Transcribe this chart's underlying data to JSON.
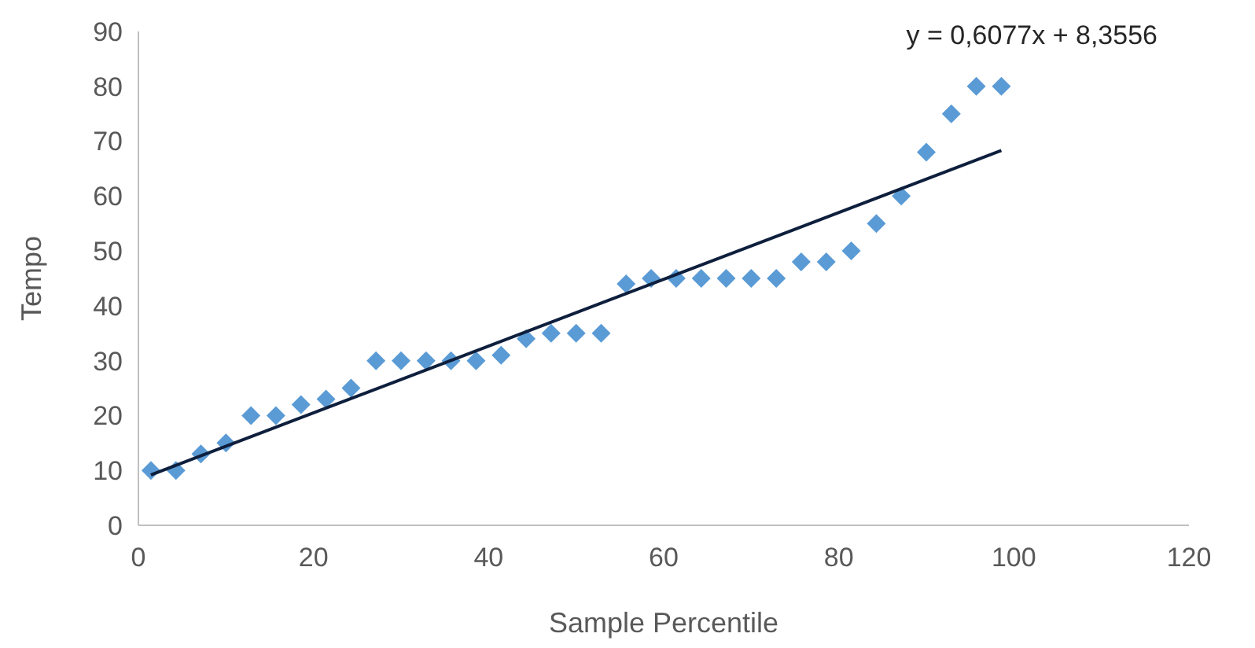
{
  "chart_data": {
    "type": "scatter",
    "xlabel": "Sample Percentile",
    "ylabel": "Tempo",
    "xlim": [
      0,
      120
    ],
    "xticks": [
      0,
      20,
      40,
      60,
      80,
      100,
      120
    ],
    "ylim": [
      0,
      90
    ],
    "yticks": [
      0,
      10,
      20,
      30,
      40,
      50,
      60,
      70,
      80,
      90
    ],
    "grid": false,
    "annotations": [
      "y = 0,6077x + 8,3556"
    ],
    "series": [
      {
        "color": "#5b9bd5",
        "marker": "diamond",
        "x": [
          1.43,
          4.29,
          7.14,
          10,
          12.86,
          15.71,
          18.57,
          21.43,
          24.29,
          27.14,
          30,
          32.86,
          35.71,
          38.57,
          41.43,
          44.29,
          47.14,
          50,
          52.86,
          55.71,
          58.57,
          61.43,
          64.29,
          67.14,
          70,
          72.86,
          75.71,
          78.57,
          81.43,
          84.29,
          87.14,
          90,
          92.86,
          95.71,
          98.57
        ],
        "values": [
          10,
          10,
          13,
          15,
          20,
          20,
          22,
          23,
          25,
          30,
          30,
          30,
          30,
          30,
          31,
          34,
          35,
          35,
          35,
          44,
          45,
          45,
          45,
          45,
          45,
          45,
          48,
          48,
          50,
          55,
          60,
          68,
          75,
          80,
          80
        ]
      },
      {
        "type": "line",
        "color": "#0e1f3d",
        "marker": "none",
        "line_style": "solid",
        "x": [
          1.43,
          98.57
        ],
        "values": [
          9.2,
          68.3
        ]
      }
    ]
  }
}
